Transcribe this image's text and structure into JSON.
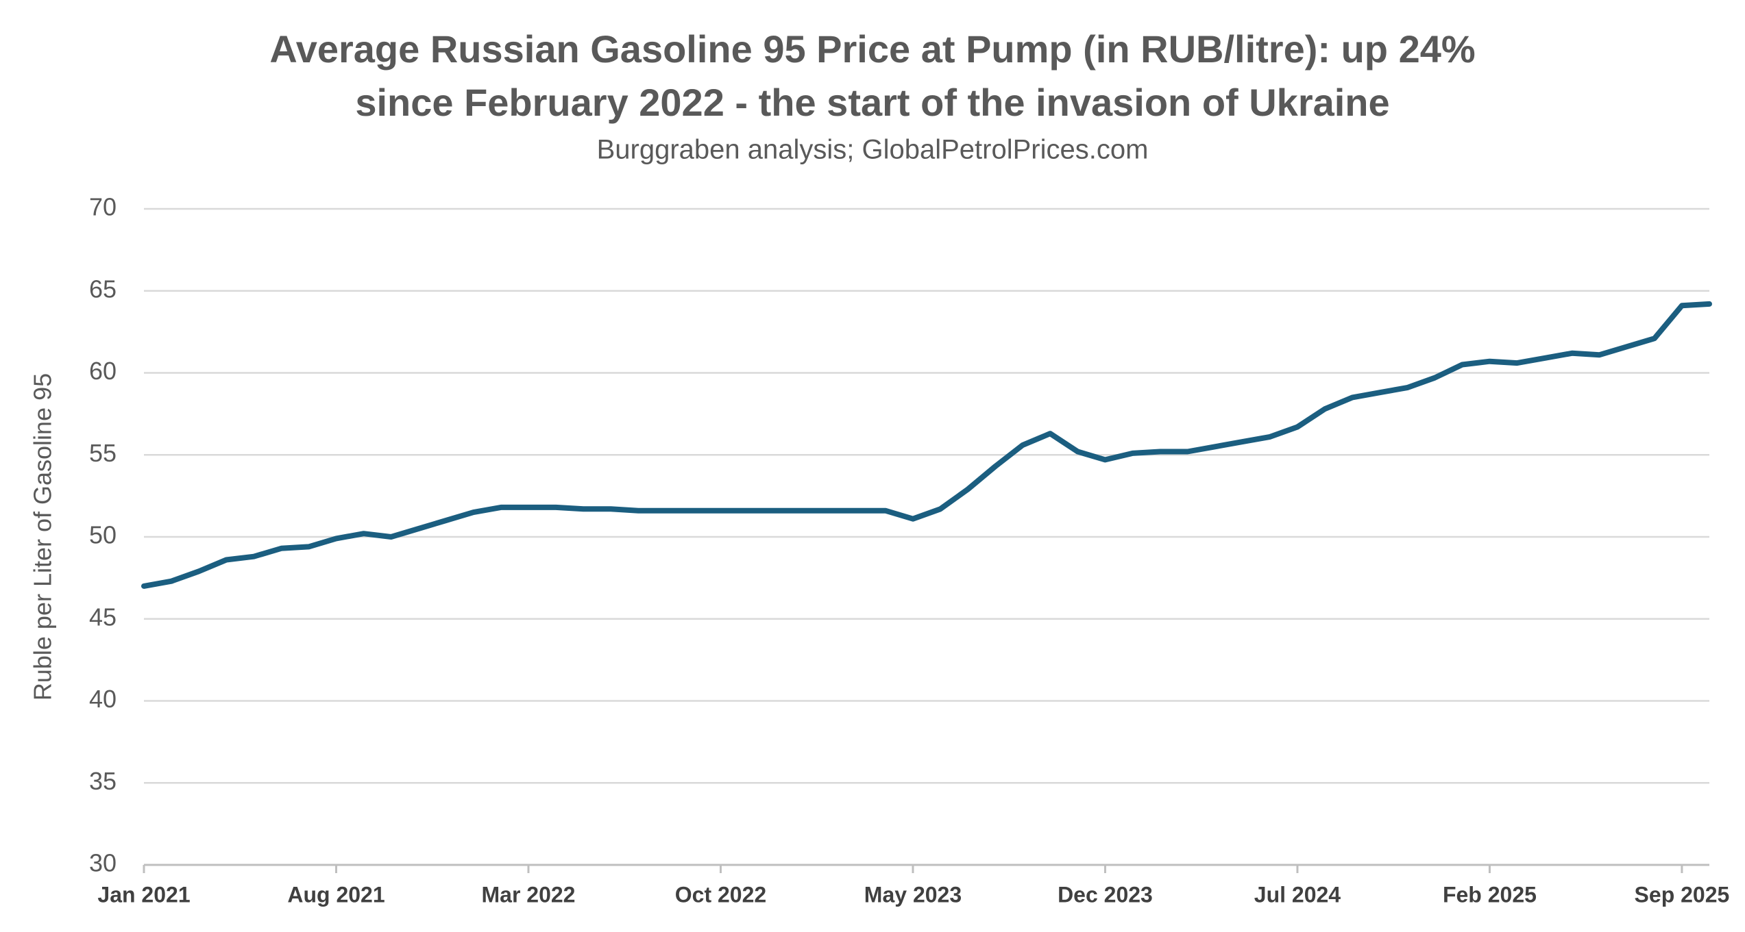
{
  "chart_data": {
    "type": "line",
    "title": [
      "Average Russian Gasoline 95 Price at Pump (in RUB/litre): up 24%",
      "since February 2022 - the start of the invasion of Ukraine"
    ],
    "subtitle": "Burggraben analysis; GlobalPetrolPrices.com",
    "y_label": "Ruble per Liter of Gasoline 95",
    "x": [
      "2021-01",
      "2021-02",
      "2021-03",
      "2021-04",
      "2021-05",
      "2021-06",
      "2021-07",
      "2021-08",
      "2021-09",
      "2021-10",
      "2021-11",
      "2021-12",
      "2022-01",
      "2022-02",
      "2022-03",
      "2022-04",
      "2022-05",
      "2022-06",
      "2022-07",
      "2022-08",
      "2022-09",
      "2022-10",
      "2022-11",
      "2022-12",
      "2023-01",
      "2023-02",
      "2023-03",
      "2023-04",
      "2023-05",
      "2023-06",
      "2023-07",
      "2023-08",
      "2023-09",
      "2023-10",
      "2023-11",
      "2023-12",
      "2024-01",
      "2024-02",
      "2024-03",
      "2024-04",
      "2024-05",
      "2024-06",
      "2024-07",
      "2024-08",
      "2024-09",
      "2024-10",
      "2024-11",
      "2024-12",
      "2025-01",
      "2025-02",
      "2025-03",
      "2025-04",
      "2025-05",
      "2025-06",
      "2025-07",
      "2025-08",
      "2025-09",
      "2025-10"
    ],
    "series": [
      {
        "name": "Gasoline 95",
        "color": "#1b5e80",
        "values": [
          47.0,
          47.3,
          47.9,
          48.6,
          48.8,
          49.3,
          49.4,
          49.9,
          50.2,
          50.0,
          50.5,
          51.0,
          51.5,
          51.8,
          51.8,
          51.8,
          51.7,
          51.7,
          51.6,
          51.6,
          51.6,
          51.6,
          51.6,
          51.6,
          51.6,
          51.6,
          51.6,
          51.6,
          51.1,
          51.7,
          52.9,
          54.3,
          55.6,
          56.3,
          55.2,
          54.7,
          55.1,
          55.2,
          55.2,
          55.5,
          55.8,
          56.1,
          56.7,
          57.8,
          58.5,
          58.8,
          59.1,
          59.7,
          60.5,
          60.7,
          60.6,
          60.9,
          61.2,
          61.1,
          61.6,
          62.1,
          64.1,
          64.2
        ]
      }
    ],
    "xlim": [
      "2021-01",
      "2025-10"
    ],
    "xticks": [
      {
        "value": "2021-01",
        "label": "Jan 2021"
      },
      {
        "value": "2021-08",
        "label": "Aug 2021"
      },
      {
        "value": "2022-03",
        "label": "Mar 2022"
      },
      {
        "value": "2022-10",
        "label": "Oct 2022"
      },
      {
        "value": "2023-05",
        "label": "May 2023"
      },
      {
        "value": "2023-12",
        "label": "Dec 2023"
      },
      {
        "value": "2024-07",
        "label": "Jul 2024"
      },
      {
        "value": "2025-02",
        "label": "Feb 2025"
      },
      {
        "value": "2025-09",
        "label": "Sep 2025"
      }
    ],
    "ylim": [
      30,
      70
    ],
    "yticks": [
      30,
      35,
      40,
      45,
      50,
      55,
      60,
      65,
      70
    ],
    "grid": true
  }
}
